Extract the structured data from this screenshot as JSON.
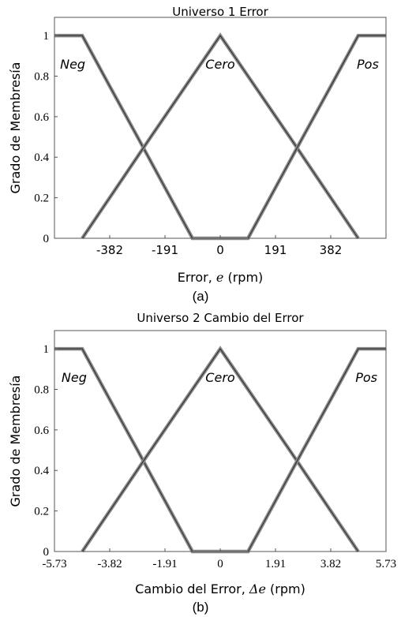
{
  "figure": {
    "caption_a": "(a)",
    "caption_b": "(b)"
  },
  "chart_data": [
    {
      "type": "line",
      "title": "Universo 1 Error",
      "xlabel": "Error, e (rpm)",
      "xlabel_parts": {
        "text": "Error, ",
        "symbol": "e",
        "unit": " (rpm)"
      },
      "ylabel": "Grado de Membresía",
      "xlim": [
        -573,
        573
      ],
      "ylim": [
        0,
        1.09
      ],
      "xticks": [
        -382,
        -191,
        0,
        191,
        382
      ],
      "xtick_labels": [
        "-382",
        "-191",
        "0",
        "191",
        "382"
      ],
      "yticks": [
        0,
        0.2,
        0.4,
        0.6,
        0.8,
        1
      ],
      "ytick_labels": [
        "0",
        "0.2",
        "0.4",
        "0.6",
        "0.8",
        "1"
      ],
      "grid": false,
      "series": [
        {
          "name": "Neg",
          "x": [
            -573,
            -477,
            -382,
            -286,
            -191,
            -96,
            0
          ],
          "y": [
            1,
            1,
            0.75,
            0.5,
            0.25,
            0,
            0
          ]
        },
        {
          "name": "Cero",
          "x": [
            -477,
            -240,
            0,
            240,
            477
          ],
          "y": [
            0,
            0.5,
            1,
            0.5,
            0
          ]
        },
        {
          "name": "Pos",
          "x": [
            0,
            96,
            191,
            286,
            382,
            477,
            573
          ],
          "y": [
            0,
            0,
            0.25,
            0.5,
            0.75,
            1,
            1
          ]
        }
      ],
      "labels": [
        {
          "text": "Neg",
          "x": -510,
          "y": 0.86
        },
        {
          "text": "Cero",
          "x": 0,
          "y": 0.86
        },
        {
          "text": "Pos",
          "x": 510,
          "y": 0.86
        }
      ]
    },
    {
      "type": "line",
      "title": "Universo 2 Cambio del Error",
      "xlabel": "Cambio del Error, Δe (rpm)",
      "xlabel_parts": {
        "text": "Cambio del Error, ",
        "symbol": "Δe",
        "unit": " (rpm)"
      },
      "ylabel": "Grado de Membresía",
      "xlim": [
        -5.73,
        5.73
      ],
      "ylim": [
        0,
        1.09
      ],
      "xticks": [
        -5.73,
        -3.82,
        -1.91,
        0,
        1.91,
        3.82,
        5.73
      ],
      "xtick_labels": [
        "-5.73",
        "-3.82",
        "-1.91",
        "0",
        "1.91",
        "3.82",
        "5.73"
      ],
      "yticks": [
        0,
        0.2,
        0.4,
        0.6,
        0.8,
        1
      ],
      "ytick_labels": [
        "0",
        "0.2",
        "0.4",
        "0.6",
        "0.8",
        "1"
      ],
      "grid": false,
      "series": [
        {
          "name": "Neg",
          "x": [
            -5.73,
            -4.77,
            -3.82,
            -2.86,
            -1.91,
            -0.96,
            0
          ],
          "y": [
            1,
            1,
            0.75,
            0.5,
            0.25,
            0,
            0
          ]
        },
        {
          "name": "Cero",
          "x": [
            -4.77,
            -2.4,
            0,
            2.4,
            4.77
          ],
          "y": [
            0,
            0.5,
            1,
            0.5,
            0
          ]
        },
        {
          "name": "Pos",
          "x": [
            0,
            0.96,
            1.91,
            2.86,
            3.82,
            4.77,
            5.73
          ],
          "y": [
            0,
            0,
            0.25,
            0.5,
            0.75,
            1,
            1
          ]
        }
      ],
      "labels": [
        {
          "text": "Neg",
          "x": -5.05,
          "y": 0.86
        },
        {
          "text": "Cero",
          "x": 0,
          "y": 0.86
        },
        {
          "text": "Pos",
          "x": 5.05,
          "y": 0.86
        }
      ]
    }
  ]
}
